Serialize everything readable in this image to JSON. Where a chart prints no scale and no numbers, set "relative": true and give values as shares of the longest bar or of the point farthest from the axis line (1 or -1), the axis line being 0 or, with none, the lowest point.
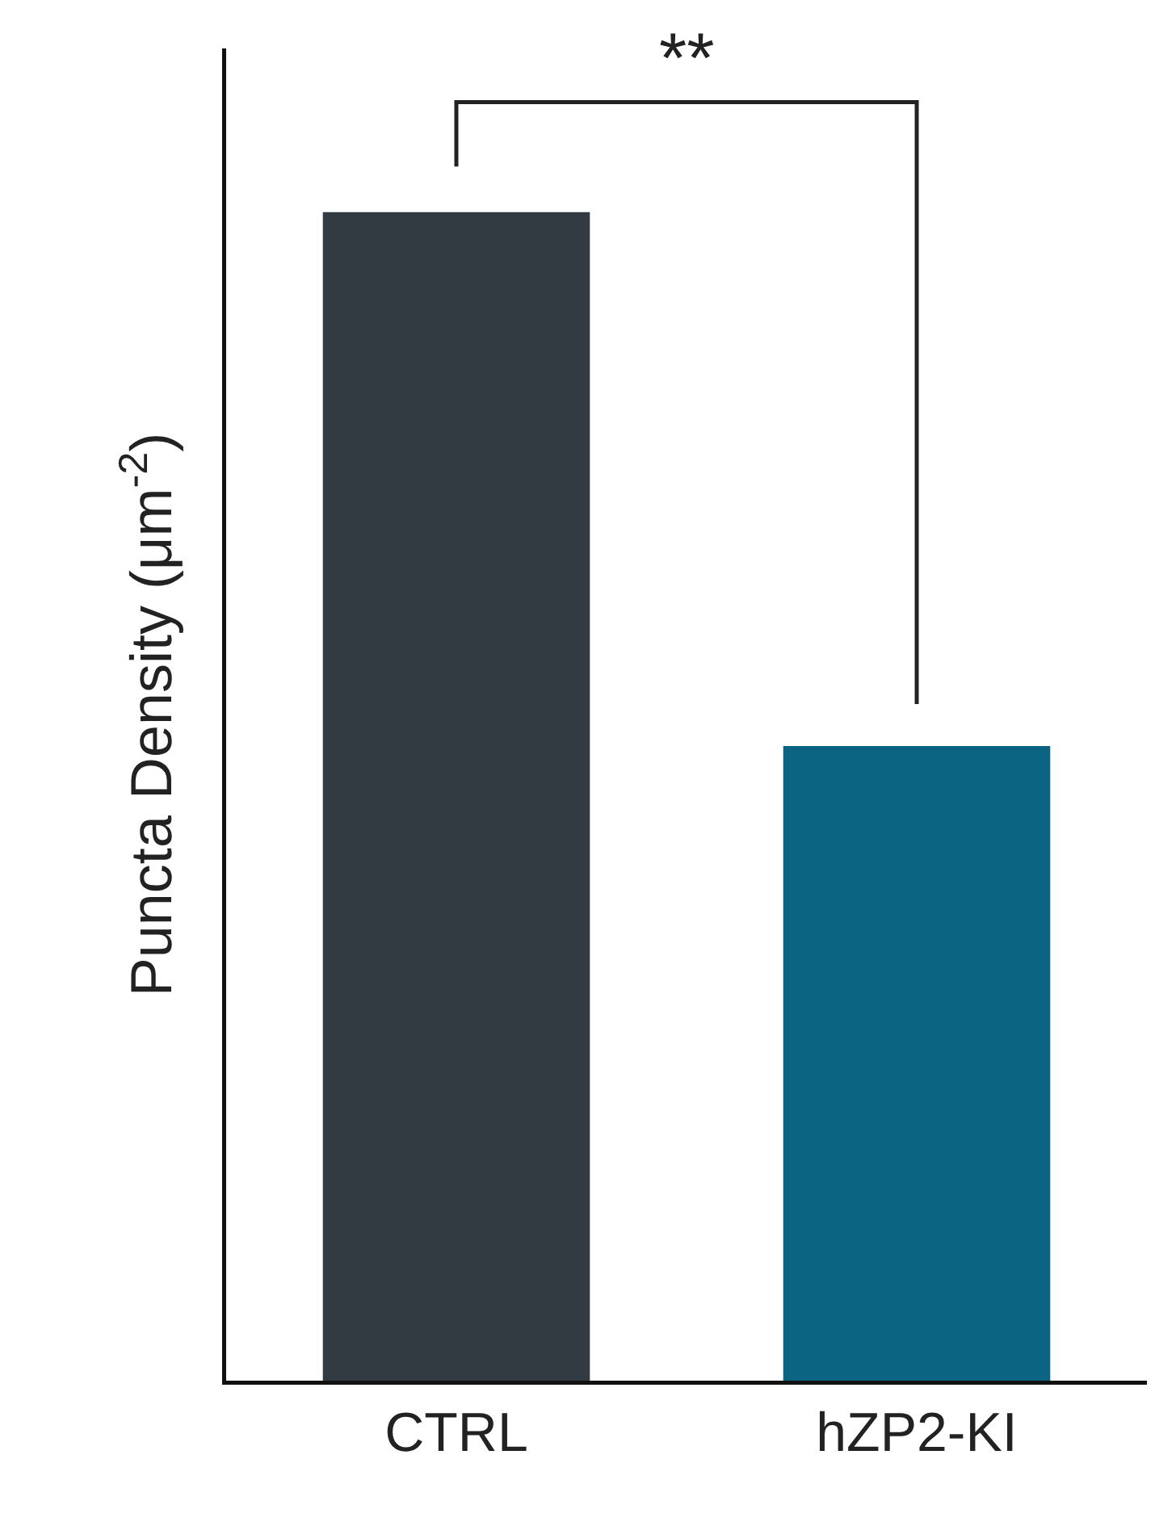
{
  "chart_data": {
    "type": "bar",
    "ylabel": "Puncta Density (μm$^{-2}$)",
    "categories": [
      "CTRL",
      "hZP2-KI"
    ],
    "values": [
      1,
      0.543
    ],
    "colors": [
      "#323a42",
      "#0c6483"
    ],
    "relative": true,
    "annotations": [
      "**"
    ]
  }
}
